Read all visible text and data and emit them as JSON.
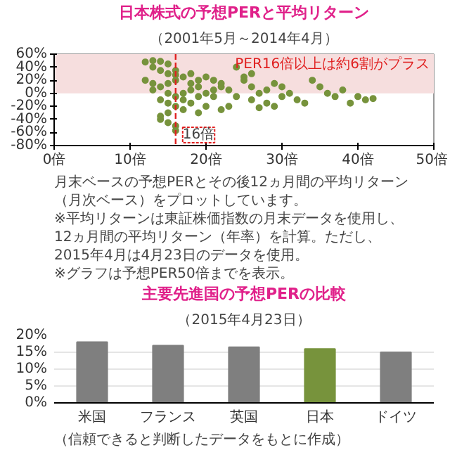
{
  "chart_data": [
    {
      "type": "scatter",
      "title": "日本株式の予想PERと平均リターン",
      "subtitle": "（2001年5月～2014年4月）",
      "color": "#77933c",
      "marker": "circle",
      "grid": false,
      "x": [
        12,
        13,
        14,
        15,
        13,
        14,
        15,
        16,
        17,
        16,
        15,
        14,
        13,
        15,
        16,
        14,
        15,
        16,
        17,
        15,
        14,
        15,
        16,
        16,
        14,
        17,
        18,
        18,
        19,
        20,
        19,
        18,
        19,
        20,
        21,
        22,
        20,
        21,
        22,
        23,
        24,
        25,
        25,
        26,
        27,
        26,
        28,
        28,
        29,
        30,
        30,
        31,
        32,
        33,
        34,
        35,
        36,
        37,
        38,
        39,
        40,
        41,
        42,
        24,
        23,
        29,
        27,
        22,
        26,
        12,
        13,
        16,
        18,
        17,
        19,
        21
      ],
      "values": [
        48,
        50,
        49,
        45,
        40,
        35,
        30,
        28,
        25,
        20,
        15,
        10,
        5,
        0,
        -5,
        -10,
        -15,
        -20,
        -25,
        -30,
        -40,
        -45,
        -50,
        -57,
        -35,
        -10,
        5,
        15,
        20,
        25,
        10,
        -15,
        -30,
        -20,
        5,
        10,
        0,
        -5,
        15,
        5,
        40,
        25,
        20,
        10,
        0,
        -10,
        -15,
        5,
        15,
        10,
        -5,
        0,
        -10,
        -15,
        20,
        10,
        0,
        -5,
        5,
        -15,
        -5,
        -10,
        -8,
        -5,
        -20,
        -20,
        -22,
        -25,
        30,
        20,
        15,
        35,
        30,
        0,
        -5,
        20
      ],
      "xlim": [
        0,
        50
      ],
      "xticks": [
        {
          "value": 0,
          "label": "0倍"
        },
        {
          "value": 10,
          "label": "10倍"
        },
        {
          "value": 20,
          "label": "20倍"
        },
        {
          "value": 30,
          "label": "30倍"
        },
        {
          "value": 40,
          "label": "40倍"
        },
        {
          "value": 50,
          "label": "50倍"
        }
      ],
      "ylim": [
        -80,
        60
      ],
      "yticks": [
        {
          "value": -80,
          "label": "-80%"
        },
        {
          "value": -60,
          "label": "-60%"
        },
        {
          "value": -40,
          "label": "-40%"
        },
        {
          "value": -20,
          "label": "-20%"
        },
        {
          "value": 0,
          "label": "0%"
        },
        {
          "value": 20,
          "label": "20%"
        },
        {
          "value": 40,
          "label": "40%"
        },
        {
          "value": 60,
          "label": "60%"
        }
      ],
      "ref_lines": [
        {
          "axis": "x",
          "value": 16,
          "label": "16倍",
          "color": "#e02020",
          "line_style": "dashed"
        }
      ],
      "bands": [
        {
          "axis": "y",
          "from": 0,
          "to": 60,
          "label": "PER16倍以上は約6割がプラス",
          "color": "#f6dede"
        }
      ],
      "annotations": [
        "月末ベースの予想PERとその後12ヵ月間の平均リターン",
        "（月次ベース）をプロットしています。",
        "※平均リターンは東証株価指数の月末データを使用し、",
        "12ヵ月間の平均リターン（年率）を計算。ただし、",
        "2015年4月は4月23日のデータを使用。",
        "※グラフは予想PER50倍までを表示。"
      ]
    },
    {
      "type": "bar",
      "title": "主要先進国の予想PERの比較",
      "subtitle": "（2015年4月23日）",
      "categories": [
        "米国",
        "フランス",
        "英国",
        "日本",
        "ドイツ"
      ],
      "values": [
        18,
        17,
        16.5,
        16,
        15
      ],
      "colors": [
        "#7f7f7f",
        "#7f7f7f",
        "#7f7f7f",
        "#77933c",
        "#7f7f7f"
      ],
      "grid": "y",
      "ylim": [
        0,
        20
      ],
      "yticks": [
        {
          "value": 0,
          "label": "0%"
        },
        {
          "value": 5,
          "label": "5%"
        },
        {
          "value": 10,
          "label": "10%"
        },
        {
          "value": 15,
          "label": "15%"
        },
        {
          "value": 20,
          "label": "20%"
        }
      ],
      "annotations": [
        "（信頼できると判断したデータをもとに作成）"
      ]
    }
  ]
}
